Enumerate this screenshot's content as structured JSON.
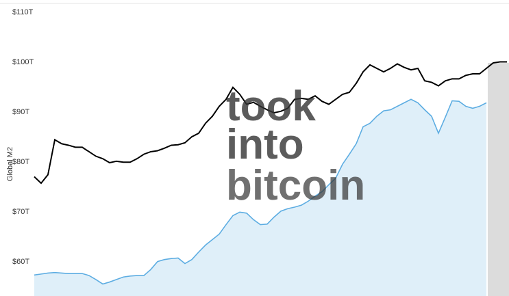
{
  "chart_data": {
    "type": "line",
    "ylabel": "Global M2",
    "watermark": [
      "took",
      "into",
      "bitcoin"
    ],
    "categories": [
      null,
      null,
      null,
      null,
      null,
      null,
      null,
      null,
      null,
      null,
      null,
      null,
      null,
      null,
      null,
      null,
      null,
      null,
      null,
      null,
      null,
      null,
      null,
      null,
      null,
      null,
      null,
      null,
      null,
      null,
      null,
      null,
      null,
      null,
      null,
      null,
      null,
      null,
      null,
      null,
      null,
      null,
      null,
      null,
      null,
      null,
      null,
      null,
      null,
      null,
      null,
      null,
      null,
      null,
      null,
      null,
      null,
      null,
      null,
      null,
      null,
      null,
      null,
      null,
      null,
      null,
      null,
      null,
      null,
      null
    ],
    "series": [
      {
        "color": "#000000",
        "fill": false,
        "values": [
          77.1,
          75.8,
          77.5,
          84.5,
          83.7,
          83.4,
          83.0,
          83.0,
          82.1,
          81.2,
          80.7,
          79.9,
          80.2,
          80.0,
          80.0,
          80.7,
          81.6,
          82.1,
          82.3,
          82.8,
          83.4,
          83.5,
          83.9,
          85.1,
          85.8,
          87.8,
          89.2,
          91.2,
          92.6,
          95.0,
          93.6,
          91.6,
          92.0,
          91.2,
          90.5,
          89.9,
          90.2,
          90.8,
          92.6,
          92.8,
          92.6,
          93.3,
          92.2,
          91.6,
          92.6,
          93.6,
          94.0,
          95.8,
          98.1,
          99.5,
          98.8,
          98.1,
          98.8,
          99.7,
          99.0,
          98.5,
          98.8,
          96.3,
          96.0,
          95.3,
          96.3,
          96.7,
          96.7,
          97.4,
          97.7,
          97.7,
          98.8,
          99.9,
          100.1,
          100.1
        ]
      },
      {
        "color": "#5dade2",
        "fill": true,
        "values": [
          57.4,
          57.6,
          57.8,
          57.9,
          57.8,
          57.7,
          57.7,
          57.7,
          57.3,
          56.5,
          55.6,
          56.0,
          56.5,
          57.0,
          57.2,
          57.3,
          57.3,
          58.5,
          60.1,
          60.5,
          60.7,
          60.8,
          59.7,
          60.5,
          62.0,
          63.4,
          64.5,
          65.6,
          67.5,
          69.3,
          70.0,
          69.8,
          68.5,
          67.5,
          67.6,
          69.0,
          70.2,
          70.7,
          71.0,
          71.4,
          72.2,
          73.2,
          74.1,
          75.5,
          76.8,
          79.6,
          81.6,
          83.7,
          87.1,
          87.8,
          89.2,
          90.3,
          90.5,
          91.2,
          91.9,
          92.6,
          91.9,
          90.5,
          89.2,
          85.8,
          89.0,
          92.3,
          92.2,
          91.2,
          90.8,
          91.2,
          91.9,
          null,
          null,
          null
        ]
      }
    ],
    "ylim": [
      53.2,
      111.4
    ],
    "yticks": [
      {
        "value": 60,
        "label": "$60T"
      },
      {
        "value": 70,
        "label": "$70T"
      },
      {
        "value": 80,
        "label": "$80T"
      },
      {
        "value": 90,
        "label": "$90T"
      },
      {
        "value": 100,
        "label": "$100T"
      },
      {
        "value": 110,
        "label": "$110T"
      }
    ],
    "grid": false
  }
}
